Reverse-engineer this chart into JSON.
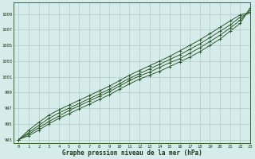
{
  "title": "Graphe pression niveau de la mer (hPa)",
  "bg_color": "#d6ecea",
  "grid_color": "#b0ccca",
  "line_color": "#2d5a2d",
  "marker_color": "#2d5a2d",
  "xlim": [
    -0.5,
    23
  ],
  "ylim": [
    992.5,
    1010.5
  ],
  "yticks": [
    993,
    995,
    997,
    999,
    1001,
    1003,
    1005,
    1007,
    1009
  ],
  "xticks": [
    0,
    1,
    2,
    3,
    4,
    5,
    6,
    7,
    8,
    9,
    10,
    11,
    12,
    13,
    14,
    15,
    16,
    17,
    18,
    19,
    20,
    21,
    22,
    23
  ],
  "lines": [
    [
      993.0,
      993.5,
      994.2,
      995.0,
      995.7,
      996.3,
      996.9,
      997.5,
      998.1,
      998.7,
      999.4,
      1000.1,
      1000.7,
      1001.2,
      1001.7,
      1002.3,
      1002.9,
      1003.5,
      1004.2,
      1005.0,
      1005.8,
      1006.8,
      1007.8,
      1009.8
    ],
    [
      993.0,
      993.7,
      994.5,
      995.3,
      996.0,
      996.7,
      997.3,
      997.9,
      998.5,
      999.1,
      999.8,
      1000.5,
      1001.1,
      1001.6,
      1002.2,
      1002.8,
      1003.3,
      1004.0,
      1004.7,
      1005.5,
      1006.3,
      1007.2,
      1008.2,
      1009.5
    ],
    [
      993.0,
      993.9,
      994.8,
      995.7,
      996.4,
      997.0,
      997.6,
      998.2,
      998.8,
      999.4,
      1000.1,
      1000.8,
      1001.4,
      1002.0,
      1002.6,
      1003.2,
      1003.8,
      1004.5,
      1005.2,
      1006.0,
      1006.8,
      1007.6,
      1008.6,
      1009.2
    ],
    [
      993.0,
      994.2,
      995.2,
      996.1,
      996.8,
      997.4,
      998.0,
      998.6,
      999.2,
      999.8,
      1000.5,
      1001.2,
      1001.8,
      1002.4,
      1003.0,
      1003.6,
      1004.3,
      1005.0,
      1005.7,
      1006.5,
      1007.3,
      1008.1,
      1008.9,
      1009.2
    ]
  ]
}
